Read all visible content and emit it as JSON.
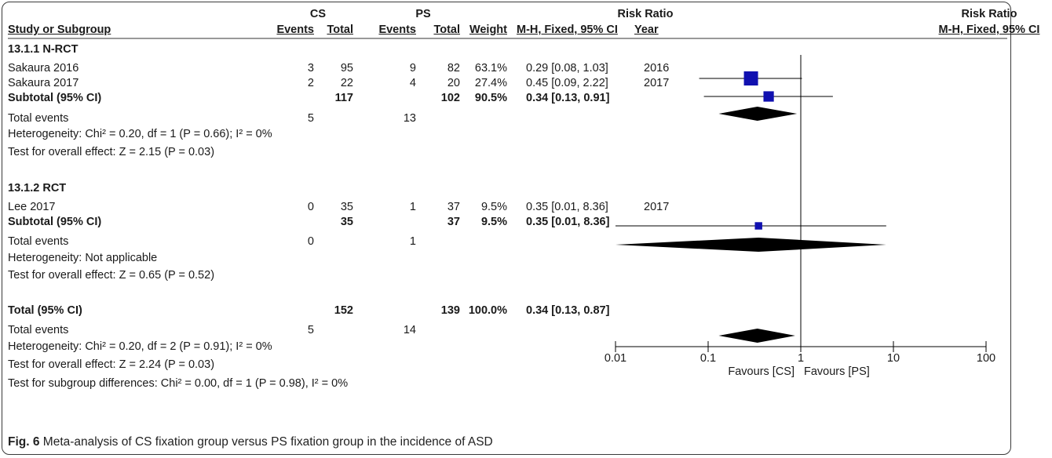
{
  "header": {
    "group1": "CS",
    "group2": "PS",
    "rr_title": "Risk Ratio",
    "plot_title": "Risk Ratio",
    "cols": {
      "study": "Study or Subgroup",
      "events1": "Events",
      "total1": "Total",
      "events2": "Events",
      "total2": "Total",
      "weight": "Weight",
      "ci": "M-H, Fixed, 95% CI",
      "year": "Year",
      "plot_method": "M-H, Fixed, 95% CI"
    }
  },
  "subgroups": [
    {
      "title": "13.1.1 N-RCT",
      "studies": [
        {
          "name": "Sakaura 2016",
          "e1": "3",
          "t1": "95",
          "e2": "9",
          "t2": "82",
          "weight": "63.1%",
          "ci": "0.29 [0.08, 1.03]",
          "year": "2016"
        },
        {
          "name": "Sakaura 2017",
          "e1": "2",
          "t1": "22",
          "e2": "4",
          "t2": "20",
          "weight": "27.4%",
          "ci": "0.45 [0.09, 2.22]",
          "year": "2017"
        }
      ],
      "subtotal": {
        "label": "Subtotal (95% CI)",
        "t1": "117",
        "t2": "102",
        "weight": "90.5%",
        "ci": "0.34 [0.13, 0.91]"
      },
      "events": {
        "label": "Total events",
        "e1": "5",
        "e2": "13"
      },
      "heterogeneity": "Heterogeneity: Chi² = 0.20, df = 1 (P = 0.66); I² = 0%",
      "overall": "Test for overall effect: Z = 2.15 (P = 0.03)"
    },
    {
      "title": "13.1.2 RCT",
      "studies": [
        {
          "name": "Lee 2017",
          "e1": "0",
          "t1": "35",
          "e2": "1",
          "t2": "37",
          "weight": "9.5%",
          "ci": "0.35 [0.01, 8.36]",
          "year": "2017"
        }
      ],
      "subtotal": {
        "label": "Subtotal (95% CI)",
        "t1": "35",
        "t2": "37",
        "weight": "9.5%",
        "ci": "0.35 [0.01, 8.36]"
      },
      "events": {
        "label": "Total events",
        "e1": "0",
        "e2": "1"
      },
      "heterogeneity": "Heterogeneity: Not applicable",
      "overall": "Test for overall effect: Z = 0.65 (P = 0.52)"
    }
  ],
  "total": {
    "label": "Total (95% CI)",
    "t1": "152",
    "t2": "139",
    "weight": "100.0%",
    "ci": "0.34 [0.13, 0.87]",
    "events_label": "Total events",
    "e1": "5",
    "e2": "14",
    "heterogeneity": "Heterogeneity: Chi² = 0.20, df = 2 (P = 0.91); I² = 0%",
    "overall": "Test for overall effect: Z = 2.24 (P = 0.03)",
    "subgroup_diff": "Test for subgroup differences: Chi² = 0.00, df = 1 (P = 0.98), I² = 0%"
  },
  "axis": {
    "ticks": [
      "0.01",
      "0.1",
      "1",
      "10",
      "100"
    ],
    "favours_left": "Favours [CS]",
    "favours_right": "Favours [PS]"
  },
  "caption": {
    "label": "Fig. 6",
    "text": " Meta-analysis of CS fixation group versus PS fixation group in the incidence of ASD"
  },
  "colors": {
    "square": "#1010b0",
    "diamond": "#000000",
    "line": "#000000"
  },
  "chart_data": {
    "type": "forest",
    "scale": "log",
    "xlim": [
      0.01,
      100
    ],
    "null_line": 1,
    "rows": [
      {
        "label": "Sakaura 2016",
        "estimate": 0.29,
        "lower": 0.08,
        "upper": 1.03,
        "weight": 63.1,
        "shape": "square"
      },
      {
        "label": "Sakaura 2017",
        "estimate": 0.45,
        "lower": 0.09,
        "upper": 2.22,
        "weight": 27.4,
        "shape": "square"
      },
      {
        "label": "Subtotal (95% CI)",
        "estimate": 0.34,
        "lower": 0.13,
        "upper": 0.91,
        "shape": "diamond"
      },
      {
        "label": "Lee 2017",
        "estimate": 0.35,
        "lower": 0.01,
        "upper": 8.36,
        "weight": 9.5,
        "shape": "square"
      },
      {
        "label": "Subtotal (95% CI)",
        "estimate": 0.35,
        "lower": 0.01,
        "upper": 8.36,
        "shape": "diamond"
      },
      {
        "label": "Total (95% CI)",
        "estimate": 0.34,
        "lower": 0.13,
        "upper": 0.87,
        "shape": "diamond"
      }
    ]
  }
}
